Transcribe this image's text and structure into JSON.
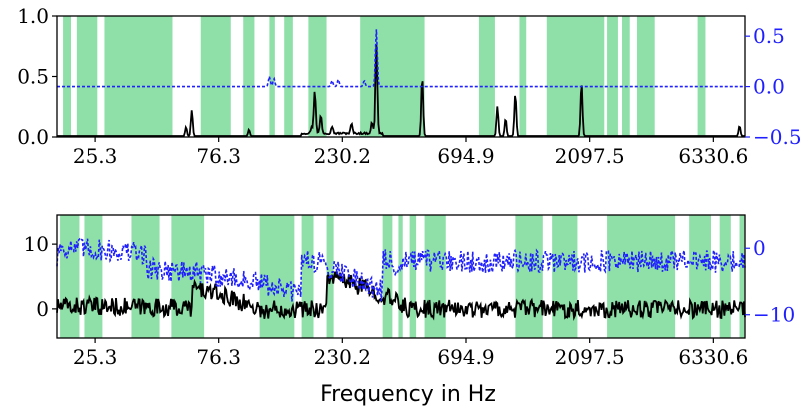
{
  "figure": {
    "xlabel": "Frequency in Hz"
  },
  "colors": {
    "band": "#8fe0a8",
    "primary": "#000000",
    "secondary": "#1f1fff"
  },
  "shared_x_ticks": [
    "25.3",
    "76.3",
    "230.2",
    "694.9",
    "2097.5",
    "6330.6"
  ],
  "chart_data": [
    {
      "type": "line",
      "panel": "top",
      "x_scale": "log",
      "xlim": [
        18,
        8400
      ],
      "ylim": [
        0,
        1.0
      ],
      "y2lim": [
        -0.5,
        0.7
      ],
      "yticks": [
        "0.0",
        "0.5",
        "1.0"
      ],
      "y2ticks": [
        "−0.5",
        "0.0",
        "0.5"
      ],
      "grid": false,
      "bands": [
        [
          19,
          20.4
        ],
        [
          21.5,
          25.8
        ],
        [
          27.5,
          50.5
        ],
        [
          65,
          85
        ],
        [
          95,
          105
        ],
        [
          120,
          126
        ],
        [
          137,
          148
        ],
        [
          170,
          200
        ],
        [
          270,
          480
        ],
        [
          780,
          900
        ],
        [
          1120,
          1190
        ],
        [
          1430,
          2390
        ],
        [
          2450,
          2700
        ],
        [
          2800,
          3000
        ],
        [
          3200,
          3750
        ],
        [
          5500,
          5900
        ]
      ],
      "series": [
        {
          "axis": "left",
          "style": "solid",
          "baseline": 0.003,
          "peaks": [
            [
              57,
              0.08
            ],
            [
              60,
              0.22
            ],
            [
              100,
              0.06
            ],
            [
              175,
              0.05
            ],
            [
              180,
              0.36
            ],
            [
              190,
              0.15
            ],
            [
              210,
              0.06
            ],
            [
              250,
              0.08
            ],
            [
              300,
              0.09
            ],
            [
              312,
              0.74
            ],
            [
              470,
              0.5
            ],
            [
              920,
              0.25
            ],
            [
              990,
              0.15
            ],
            [
              1080,
              0.36
            ],
            [
              1950,
              0.45
            ],
            [
              8000,
              0.09
            ]
          ]
        },
        {
          "axis": "right",
          "style": "dashed",
          "baseline": 0.0,
          "peaks": [
            [
              120,
              0.1
            ],
            [
              125,
              0.08
            ],
            [
              210,
              0.06
            ],
            [
              222,
              0.07
            ],
            [
              312,
              0.57
            ],
            [
              280,
              0.06
            ]
          ]
        }
      ]
    },
    {
      "type": "line",
      "panel": "bottom",
      "x_scale": "log",
      "xlim": [
        18,
        8400
      ],
      "ylim": [
        -4.5,
        14.5
      ],
      "y2lim": [
        -13.5,
        5
      ],
      "yticks": [
        "0",
        "10"
      ],
      "y2ticks": [
        "−10",
        "0"
      ],
      "grid": false,
      "bands": [
        [
          18.5,
          22
        ],
        [
          23,
          27
        ],
        [
          35,
          45
        ],
        [
          50,
          67
        ],
        [
          110,
          150
        ],
        [
          160,
          178
        ],
        [
          200,
          213
        ],
        [
          330,
          360
        ],
        [
          380,
          395
        ],
        [
          420,
          445
        ],
        [
          480,
          580
        ],
        [
          1080,
          1380
        ],
        [
          1500,
          1880
        ],
        [
          2450,
          4500
        ],
        [
          5100,
          6200
        ],
        [
          6700,
          7400
        ],
        [
          8000,
          8350
        ]
      ],
      "series": [
        {
          "axis": "left",
          "style": "solid",
          "noise_amp": 2.8,
          "features": [
            [
              180,
              180,
              0,
              205,
              3.8,
              0.8
            ],
            [
              200,
              410,
              1,
              360,
              4.2,
              0.9
            ],
            [
              60,
              120,
              2,
              60,
              2.0,
              1.3
            ],
            [
              18,
              60,
              3,
              120,
              0.4,
              0.0
            ]
          ]
        },
        {
          "axis": "right",
          "style": "dashed",
          "noise_amp": 3.4,
          "features": [
            [
              40,
              160,
              4,
              120,
              2.0,
              -3.0
            ],
            [
              160,
              380,
              5,
              170,
              2.6,
              -2.0
            ],
            [
              18,
              40,
              6,
              70,
              1.5,
              0.6
            ]
          ]
        }
      ]
    }
  ]
}
